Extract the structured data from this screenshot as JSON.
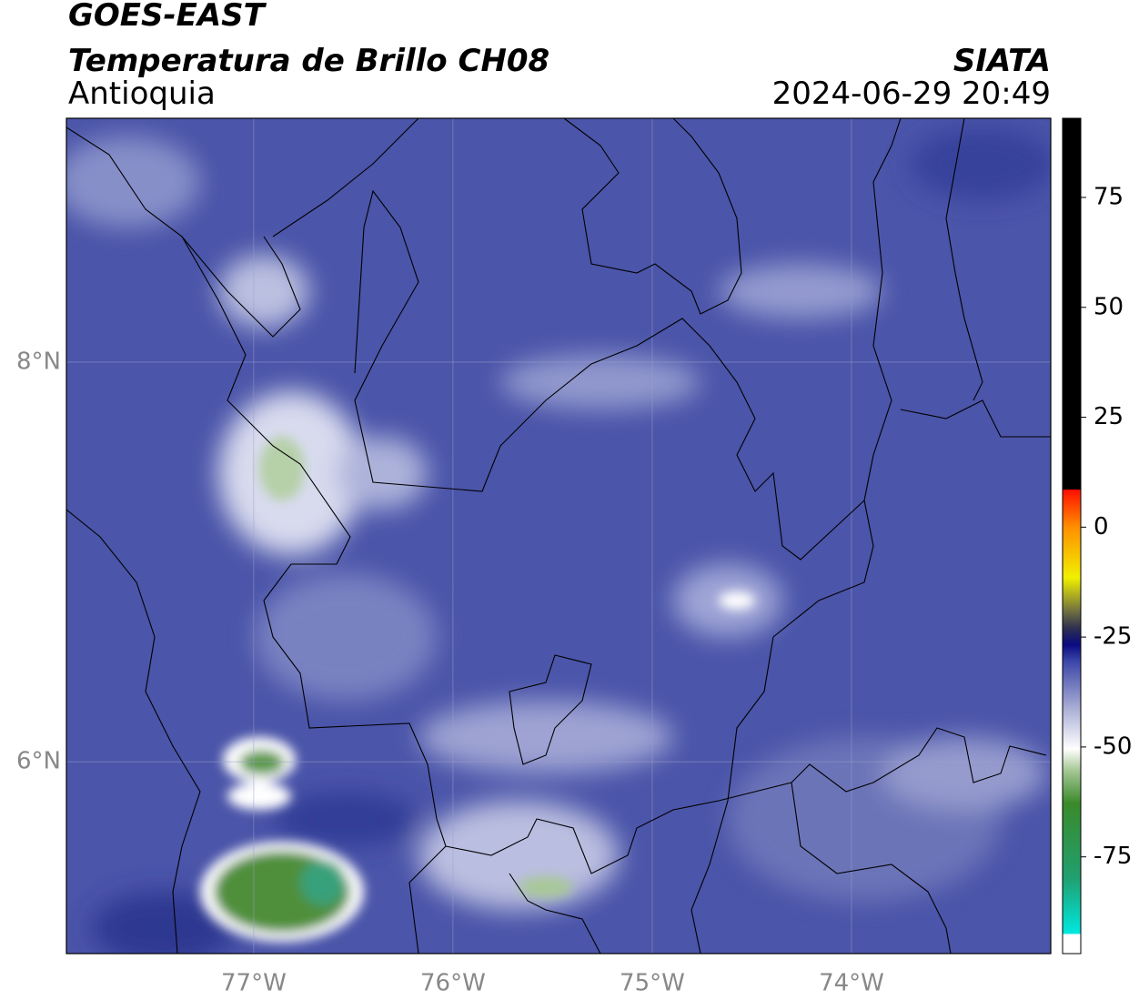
{
  "header": {
    "title": "GOES-EAST",
    "subtitle": "Temperatura de Brillo CH08",
    "region": "Antioquia",
    "source": "SIATA",
    "datetime": "2024-06-29 20:49"
  },
  "map": {
    "xlim": [
      -77.94,
      -73.0
    ],
    "ylim": [
      5.04,
      9.22
    ],
    "xticks": [
      {
        "value": -77,
        "label": "77°W"
      },
      {
        "value": -76,
        "label": "76°W"
      },
      {
        "value": -75,
        "label": "75°W"
      },
      {
        "value": -74,
        "label": "74°W"
      }
    ],
    "yticks": [
      {
        "value": 6,
        "label": "6°N"
      },
      {
        "value": 8,
        "label": "8°N"
      }
    ],
    "grid": true
  },
  "colorbar": {
    "lim": [
      -97,
      93
    ],
    "ticks": [
      75,
      50,
      25,
      0,
      -25,
      -50,
      -75
    ]
  }
}
